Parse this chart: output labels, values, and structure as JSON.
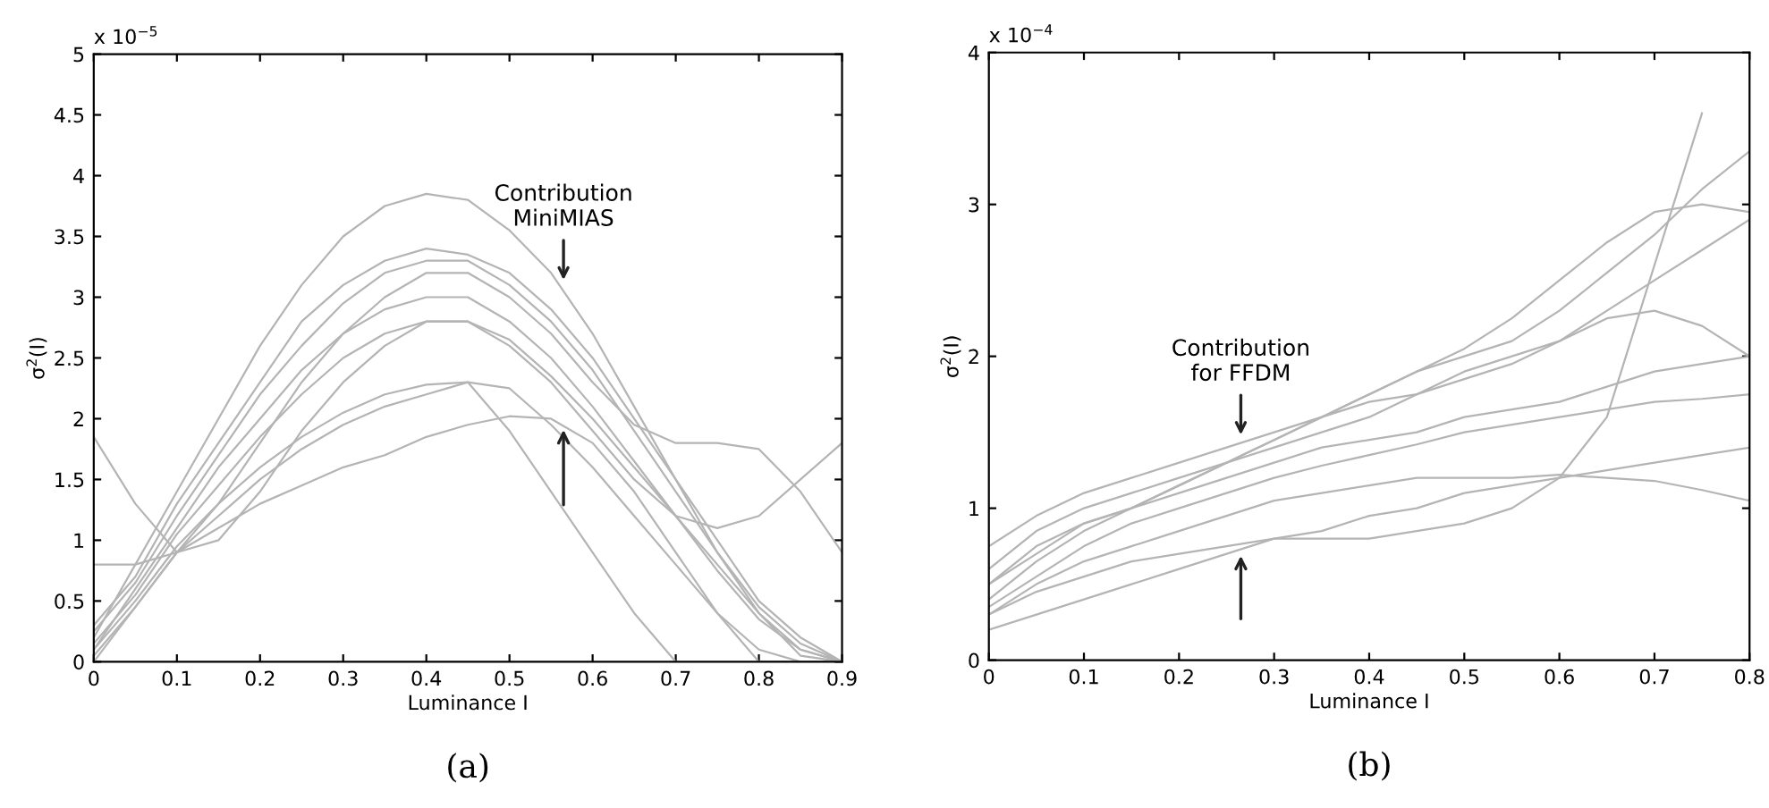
{
  "chart_data": [
    {
      "type": "line",
      "xlabel": "Luminance I",
      "ylabel": "σ$^{2}$(I)",
      "xlim": [
        0,
        0.9
      ],
      "ylim": [
        0,
        5
      ],
      "xticks": [
        0,
        0.1,
        0.2,
        0.3,
        0.4,
        0.5,
        0.6,
        0.7,
        0.8,
        0.9
      ],
      "yticks": [
        0,
        0.5,
        1,
        1.5,
        2,
        2.5,
        3,
        3.5,
        4,
        4.5,
        5
      ],
      "grid": false,
      "legend": false,
      "marker": "none",
      "line_style": "solid",
      "x": [
        0,
        0.05,
        0.1,
        0.15,
        0.2,
        0.25,
        0.3,
        0.35,
        0.4,
        0.45,
        0.5,
        0.55,
        0.6,
        0.65,
        0.7,
        0.75,
        0.8,
        0.85,
        0.9
      ],
      "series": [
        {
          "color": "#b4b4b4",
          "values": [
            0.2,
            0.8,
            1.4,
            2.0,
            2.6,
            3.1,
            3.5,
            3.75,
            3.85,
            3.8,
            3.55,
            3.2,
            2.7,
            2.1,
            1.5,
            0.9,
            0.4,
            0.05,
            0
          ]
        },
        {
          "color": "#b4b4b4",
          "values": [
            0.3,
            0.7,
            1.3,
            1.8,
            2.3,
            2.8,
            3.1,
            3.3,
            3.4,
            3.35,
            3.2,
            2.9,
            2.5,
            2.0,
            1.5,
            1.0,
            0.5,
            0.2,
            0
          ]
        },
        {
          "color": "#b4b4b4",
          "values": [
            0.25,
            0.65,
            1.2,
            1.7,
            2.2,
            2.6,
            2.95,
            3.2,
            3.3,
            3.3,
            3.1,
            2.8,
            2.4,
            1.9,
            1.4,
            0.9,
            0.45,
            0.15,
            0
          ]
        },
        {
          "color": "#b4b4b4",
          "values": [
            0.1,
            0.6,
            1.1,
            1.6,
            2.0,
            2.4,
            2.7,
            2.9,
            3.0,
            3.0,
            2.8,
            2.5,
            2.1,
            1.65,
            1.2,
            0.75,
            0.35,
            0.1,
            0
          ]
        },
        {
          "color": "#b4b4b4",
          "values": [
            0.15,
            0.55,
            1.05,
            1.45,
            1.85,
            2.2,
            2.5,
            2.7,
            2.8,
            2.8,
            2.65,
            2.35,
            2.0,
            1.6,
            1.2,
            0.8,
            0.4,
            0.1,
            0
          ]
        },
        {
          "color": "#b4b4b4",
          "values": [
            0,
            0.45,
            0.9,
            1.2,
            1.5,
            1.75,
            1.95,
            2.1,
            2.2,
            2.3,
            2.25,
            1.95,
            1.6,
            1.2,
            0.8,
            0.4,
            0.1,
            0,
            0
          ]
        },
        {
          "color": "#b4b4b4",
          "values": [
            0.05,
            0.45,
            0.9,
            1.1,
            1.3,
            1.45,
            1.6,
            1.7,
            1.85,
            1.95,
            2.02,
            2.0,
            1.8,
            1.4,
            0.9,
            0.4,
            0,
            0,
            0
          ]
        },
        {
          "color": "#b4b4b4",
          "values": [
            0.1,
            0.5,
            0.95,
            1.3,
            1.6,
            1.85,
            2.05,
            2.2,
            2.28,
            2.3,
            1.9,
            1.4,
            0.9,
            0.4,
            0,
            null,
            null,
            null,
            null
          ]
        },
        {
          "color": "#b4b4b4",
          "values": [
            1.85,
            1.3,
            0.9,
            1.0,
            1.4,
            1.9,
            2.3,
            2.6,
            2.8,
            2.8,
            2.6,
            2.3,
            1.9,
            1.5,
            1.2,
            1.1,
            1.2,
            1.5,
            1.8
          ]
        },
        {
          "color": "#b4b4b4",
          "values": [
            0.8,
            0.8,
            0.9,
            1.3,
            1.8,
            2.3,
            2.7,
            3.0,
            3.2,
            3.2,
            3.0,
            2.7,
            2.3,
            1.95,
            1.8,
            1.8,
            1.75,
            1.4,
            0.9
          ]
        }
      ],
      "annotations": [
        "x 10$^{−5}$",
        "(a)",
        {
          "text": "Contribution\nMiniMIAS",
          "x": 0.565,
          "y": 3.1
        }
      ]
    },
    {
      "type": "line",
      "xlabel": "Luminance I",
      "ylabel": "σ$^{2}$(I)",
      "xlim": [
        0,
        0.8
      ],
      "ylim": [
        0,
        4
      ],
      "xticks": [
        0,
        0.1,
        0.2,
        0.3,
        0.4,
        0.5,
        0.6,
        0.7,
        0.8
      ],
      "yticks": [
        0,
        1,
        2,
        3,
        4
      ],
      "grid": false,
      "legend": false,
      "marker": "none",
      "line_style": "solid",
      "x": [
        0,
        0.05,
        0.1,
        0.15,
        0.2,
        0.25,
        0.3,
        0.35,
        0.4,
        0.45,
        0.5,
        0.55,
        0.6,
        0.65,
        0.7,
        0.75,
        0.8
      ],
      "series": [
        {
          "color": "#b4b4b4",
          "values": [
            0.75,
            0.95,
            1.1,
            1.2,
            1.3,
            1.4,
            1.5,
            1.6,
            1.7,
            1.75,
            1.85,
            1.95,
            2.1,
            2.3,
            2.5,
            2.7,
            2.9
          ]
        },
        {
          "color": "#b4b4b4",
          "values": [
            0.5,
            0.75,
            0.9,
            1.0,
            1.15,
            1.3,
            1.45,
            1.6,
            1.75,
            1.9,
            2.0,
            2.1,
            2.3,
            2.55,
            2.8,
            3.1,
            3.35
          ]
        },
        {
          "color": "#b4b4b4",
          "values": [
            0.6,
            0.85,
            1.0,
            1.1,
            1.2,
            1.3,
            1.4,
            1.5,
            1.6,
            1.75,
            1.9,
            2.0,
            2.1,
            2.25,
            2.3,
            2.2,
            2.0
          ]
        },
        {
          "color": "#b4b4b4",
          "values": [
            0.5,
            0.7,
            0.9,
            1.0,
            1.15,
            1.3,
            1.45,
            1.6,
            1.75,
            1.9,
            2.05,
            2.25,
            2.5,
            2.75,
            2.95,
            3.0,
            2.95
          ]
        },
        {
          "color": "#b4b4b4",
          "values": [
            0.4,
            0.65,
            0.85,
            1.0,
            1.1,
            1.2,
            1.3,
            1.4,
            1.45,
            1.5,
            1.6,
            1.65,
            1.7,
            1.8,
            1.9,
            1.95,
            2.0
          ]
        },
        {
          "color": "#b4b4b4",
          "values": [
            0.35,
            0.55,
            0.75,
            0.9,
            1.0,
            1.1,
            1.2,
            1.28,
            1.35,
            1.42,
            1.5,
            1.55,
            1.6,
            1.65,
            1.7,
            1.72,
            1.75
          ]
        },
        {
          "color": "#b4b4b4",
          "values": [
            0.3,
            0.5,
            0.65,
            0.75,
            0.85,
            0.95,
            1.05,
            1.1,
            1.15,
            1.2,
            1.2,
            1.2,
            1.22,
            1.2,
            1.18,
            1.12,
            1.05
          ]
        },
        {
          "color": "#b4b4b4",
          "values": [
            0.3,
            0.45,
            0.55,
            0.65,
            0.7,
            0.75,
            0.8,
            0.8,
            0.8,
            0.85,
            0.9,
            1.0,
            1.2,
            1.6,
            2.6,
            3.6,
            null
          ]
        },
        {
          "color": "#b4b4b4",
          "values": [
            0.2,
            0.3,
            0.4,
            0.5,
            0.6,
            0.7,
            0.8,
            0.85,
            0.95,
            1.0,
            1.1,
            1.15,
            1.2,
            1.25,
            1.3,
            1.35,
            1.4
          ]
        }
      ],
      "annotations": [
        "x 10$^{−4}$",
        "(b)",
        {
          "text": "Contribution\nfor FFDM",
          "x": 0.265,
          "y": 1.45
        }
      ]
    }
  ]
}
